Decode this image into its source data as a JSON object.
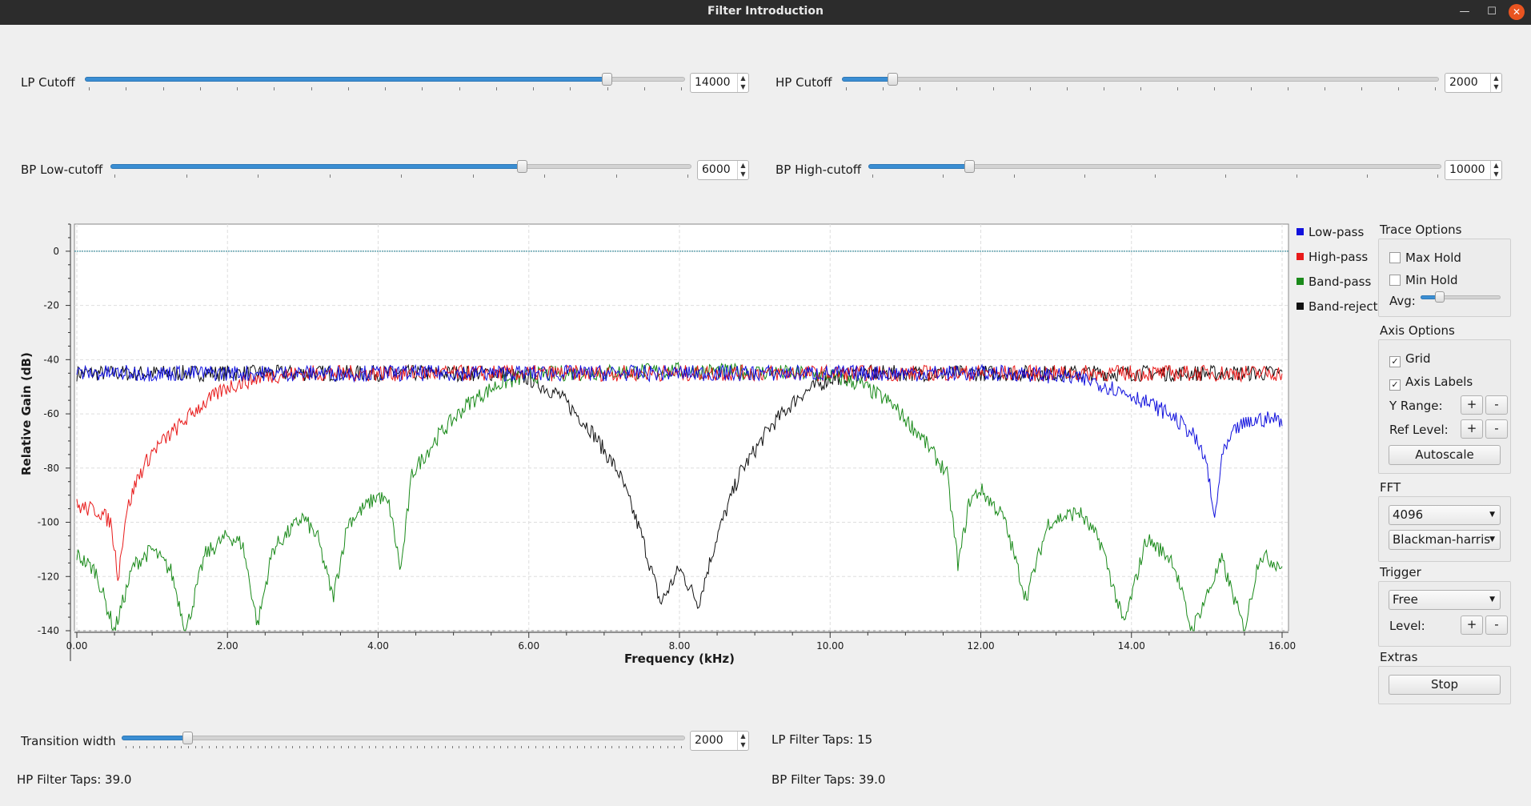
{
  "window": {
    "title": "Filter Introduction"
  },
  "controls": {
    "lp_cutoff": {
      "label": "LP Cutoff",
      "value": "14000",
      "fraction": 0.875
    },
    "hp_cutoff": {
      "label": "HP Cutoff",
      "value": "2000",
      "fraction": 0.078
    },
    "bp_low": {
      "label": "BP Low-cutoff",
      "value": "6000",
      "fraction": 0.712
    },
    "bp_high": {
      "label": "BP High-cutoff",
      "value": "10000",
      "fraction": 0.17
    },
    "transition": {
      "label": "Transition width",
      "value": "2000",
      "fraction": 0.11
    }
  },
  "info": {
    "lp_taps": "LP Filter Taps: 15",
    "hp_taps": "HP Filter Taps: 39.0",
    "bp_taps": "BP Filter Taps: 39.0"
  },
  "legend": [
    {
      "name": "Low-pass",
      "color": "#1111dd"
    },
    {
      "name": "High-pass",
      "color": "#e81a1a"
    },
    {
      "name": "Band-pass",
      "color": "#1a8a1a"
    },
    {
      "name": "Band-reject",
      "color": "#111111"
    }
  ],
  "panel": {
    "trace_options": "Trace Options",
    "max_hold": "Max Hold",
    "min_hold": "Min Hold",
    "avg": "Avg:",
    "avg_fraction": 0.2,
    "axis_options": "Axis Options",
    "grid": "Grid",
    "axis_labels": "Axis Labels",
    "y_range": "Y Range:",
    "ref_level": "Ref Level:",
    "plus": "+",
    "minus": "-",
    "autoscale": "Autoscale",
    "fft": "FFT",
    "fft_size": "4096",
    "window": "Blackman-harris",
    "trigger": "Trigger",
    "trigger_mode": "Free",
    "level": "Level:",
    "extras": "Extras",
    "stop": "Stop"
  },
  "chart_data": {
    "type": "line",
    "xlabel": "Frequency (kHz)",
    "ylabel": "Relative Gain (dB)",
    "xlim": [
      0,
      16
    ],
    "ylim": [
      -140,
      10
    ],
    "xticks": [
      "0.00",
      "2.00",
      "4.00",
      "6.00",
      "8.00",
      "10.00",
      "12.00",
      "14.00",
      "16.00"
    ],
    "yticks": [
      "0",
      "-20",
      "-40",
      "-60",
      "-80",
      "-100",
      "-120",
      "-140"
    ],
    "grid": true,
    "reference_line": 0,
    "series": [
      {
        "name": "Low-pass",
        "color": "#1111dd",
        "x": [
          0,
          12.5,
          13.0,
          13.5,
          14.0,
          14.5,
          14.8,
          15.0,
          15.1,
          15.2,
          15.4,
          15.7,
          16.0
        ],
        "y": [
          -45,
          -45,
          -46,
          -48,
          -53,
          -60,
          -67,
          -78,
          -100,
          -76,
          -65,
          -62,
          -62
        ]
      },
      {
        "name": "High-pass",
        "color": "#e81a1a",
        "x": [
          0,
          0.3,
          0.45,
          0.55,
          0.65,
          0.8,
          1.0,
          1.3,
          1.6,
          2.0,
          2.5,
          3.0,
          3.5,
          16.0
        ],
        "y": [
          -94,
          -96,
          -100,
          -120,
          -97,
          -84,
          -74,
          -66,
          -58,
          -50,
          -46,
          -45,
          -45,
          -45
        ]
      },
      {
        "name": "Band-pass",
        "color": "#1a8a1a",
        "x": [
          0,
          0.25,
          0.5,
          0.75,
          1.0,
          1.25,
          1.45,
          1.7,
          2.0,
          2.2,
          2.4,
          2.6,
          3.0,
          3.2,
          3.4,
          3.6,
          4.0,
          4.15,
          4.3,
          4.45,
          4.8,
          5.2,
          5.6,
          6.0,
          6.4,
          8.0,
          9.6,
          10.0,
          10.4,
          10.8,
          11.2,
          11.55,
          11.7,
          11.85,
          12.0,
          12.3,
          12.6,
          12.9,
          13.3,
          13.6,
          13.9,
          14.2,
          14.55,
          14.8,
          15.2,
          15.5,
          15.7,
          16.0
        ],
        "y": [
          -112,
          -118,
          -140,
          -116,
          -110,
          -118,
          -140,
          -112,
          -105,
          -108,
          -138,
          -110,
          -98,
          -106,
          -128,
          -100,
          -90,
          -94,
          -118,
          -82,
          -68,
          -56,
          -49,
          -46,
          -45,
          -44,
          -45,
          -46,
          -49,
          -56,
          -68,
          -82,
          -116,
          -92,
          -88,
          -98,
          -128,
          -100,
          -96,
          -108,
          -138,
          -106,
          -114,
          -140,
          -114,
          -140,
          -112,
          -116
        ]
      },
      {
        "name": "Band-reject",
        "color": "#111111",
        "x": [
          0,
          5.6,
          6.0,
          6.4,
          6.8,
          7.2,
          7.5,
          7.75,
          8.0,
          8.25,
          8.5,
          8.8,
          9.2,
          9.6,
          10.0,
          10.4,
          16.0
        ],
        "y": [
          -45,
          -45,
          -47,
          -53,
          -65,
          -82,
          -105,
          -130,
          -117,
          -130,
          -105,
          -82,
          -65,
          -53,
          -47,
          -45,
          -45
        ]
      }
    ]
  }
}
